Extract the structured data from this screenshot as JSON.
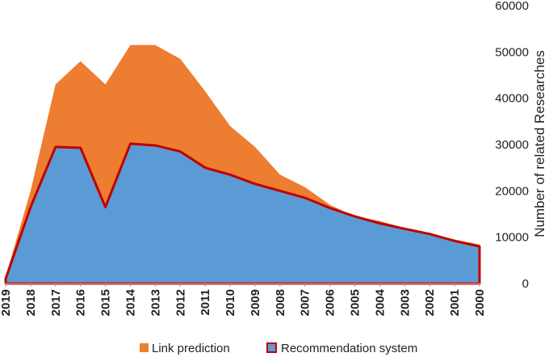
{
  "chart_data": {
    "type": "area",
    "title": "",
    "xlabel": "",
    "ylabel": "Number of related Researches",
    "ylim": [
      0,
      60000
    ],
    "y_ticks": [
      "0",
      "10000",
      "20000",
      "30000",
      "40000",
      "50000",
      "60000"
    ],
    "y_tick_values": [
      0,
      10000,
      20000,
      30000,
      40000,
      50000,
      60000
    ],
    "categories": [
      "2019",
      "2018",
      "2017",
      "2016",
      "2015",
      "2014",
      "2013",
      "2012",
      "2011",
      "2010",
      "2009",
      "2008",
      "2007",
      "2006",
      "2005",
      "2004",
      "2003",
      "2002",
      "2001",
      "2000"
    ],
    "series": [
      {
        "name": "Link prediction",
        "color": "#ED7D31",
        "values": [
          1500,
          20000,
          43000,
          48000,
          43000,
          51500,
          51500,
          48500,
          41500,
          34000,
          29500,
          23500,
          20800,
          17000,
          14500,
          13500,
          12000,
          10800,
          9500,
          8400
        ]
      },
      {
        "name": "Recommendation system",
        "color": "#5B9BD5",
        "stroke": "#C00000",
        "values": [
          1000,
          16500,
          29500,
          29300,
          16500,
          30200,
          29800,
          28500,
          25000,
          23500,
          21500,
          20000,
          18500,
          16300,
          14500,
          13000,
          11800,
          10700,
          9200,
          8000
        ]
      }
    ],
    "legend_position": "bottom",
    "y_axis_position": "right",
    "grid": false
  }
}
